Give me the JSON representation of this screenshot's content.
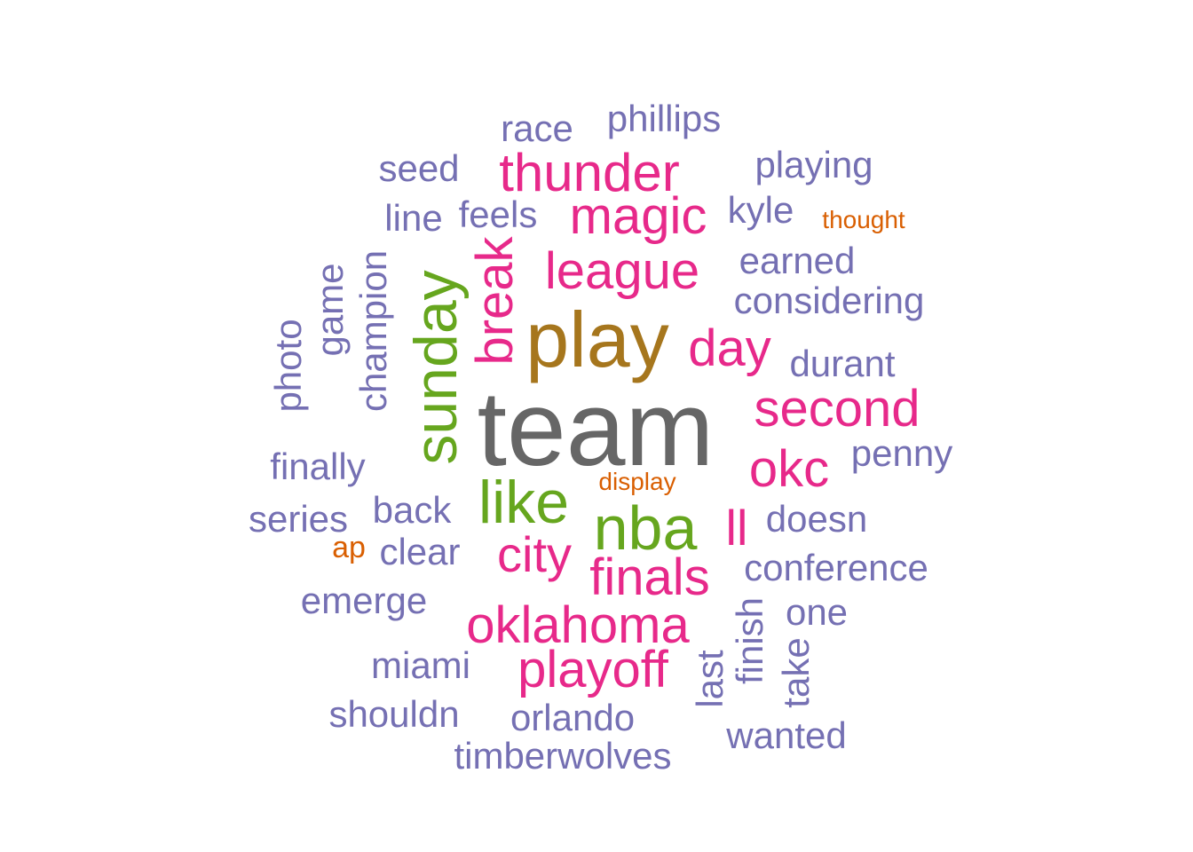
{
  "palette": {
    "purple": "#7570b3",
    "pink": "#e7298a",
    "green": "#66a61e",
    "gold": "#a6761d",
    "gray": "#666666",
    "orange": "#d95f02"
  },
  "words": [
    {
      "text": "team",
      "color": "#666666"
    },
    {
      "text": "play",
      "color": "#a6761d"
    },
    {
      "text": "nba",
      "color": "#66a61e"
    },
    {
      "text": "sunday",
      "color": "#66a61e"
    },
    {
      "text": "like",
      "color": "#66a61e"
    },
    {
      "text": "thunder",
      "color": "#e7298a"
    },
    {
      "text": "magic",
      "color": "#e7298a"
    },
    {
      "text": "league",
      "color": "#e7298a"
    },
    {
      "text": "break",
      "color": "#e7298a"
    },
    {
      "text": "day",
      "color": "#e7298a"
    },
    {
      "text": "second",
      "color": "#e7298a"
    },
    {
      "text": "okc",
      "color": "#e7298a"
    },
    {
      "text": "city",
      "color": "#e7298a"
    },
    {
      "text": "ll",
      "color": "#e7298a"
    },
    {
      "text": "finals",
      "color": "#e7298a"
    },
    {
      "text": "oklahoma",
      "color": "#e7298a"
    },
    {
      "text": "playoff",
      "color": "#e7298a"
    },
    {
      "text": "race",
      "color": "#7570b3"
    },
    {
      "text": "phillips",
      "color": "#7570b3"
    },
    {
      "text": "seed",
      "color": "#7570b3"
    },
    {
      "text": "playing",
      "color": "#7570b3"
    },
    {
      "text": "line",
      "color": "#7570b3"
    },
    {
      "text": "feels",
      "color": "#7570b3"
    },
    {
      "text": "kyle",
      "color": "#7570b3"
    },
    {
      "text": "thought",
      "color": "#d95f02"
    },
    {
      "text": "earned",
      "color": "#7570b3"
    },
    {
      "text": "considering",
      "color": "#7570b3"
    },
    {
      "text": "game",
      "color": "#7570b3"
    },
    {
      "text": "champion",
      "color": "#7570b3"
    },
    {
      "text": "photo",
      "color": "#7570b3"
    },
    {
      "text": "durant",
      "color": "#7570b3"
    },
    {
      "text": "penny",
      "color": "#7570b3"
    },
    {
      "text": "finally",
      "color": "#7570b3"
    },
    {
      "text": "display",
      "color": "#d95f02"
    },
    {
      "text": "series",
      "color": "#7570b3"
    },
    {
      "text": "back",
      "color": "#7570b3"
    },
    {
      "text": "doesn",
      "color": "#7570b3"
    },
    {
      "text": "ap",
      "color": "#d95f02"
    },
    {
      "text": "clear",
      "color": "#7570b3"
    },
    {
      "text": "conference",
      "color": "#7570b3"
    },
    {
      "text": "emerge",
      "color": "#7570b3"
    },
    {
      "text": "one",
      "color": "#7570b3"
    },
    {
      "text": "finish",
      "color": "#7570b3"
    },
    {
      "text": "last",
      "color": "#7570b3"
    },
    {
      "text": "take",
      "color": "#7570b3"
    },
    {
      "text": "miami",
      "color": "#7570b3"
    },
    {
      "text": "shouldn",
      "color": "#7570b3"
    },
    {
      "text": "orlando",
      "color": "#7570b3"
    },
    {
      "text": "wanted",
      "color": "#7570b3"
    },
    {
      "text": "timberwolves",
      "color": "#7570b3"
    }
  ]
}
